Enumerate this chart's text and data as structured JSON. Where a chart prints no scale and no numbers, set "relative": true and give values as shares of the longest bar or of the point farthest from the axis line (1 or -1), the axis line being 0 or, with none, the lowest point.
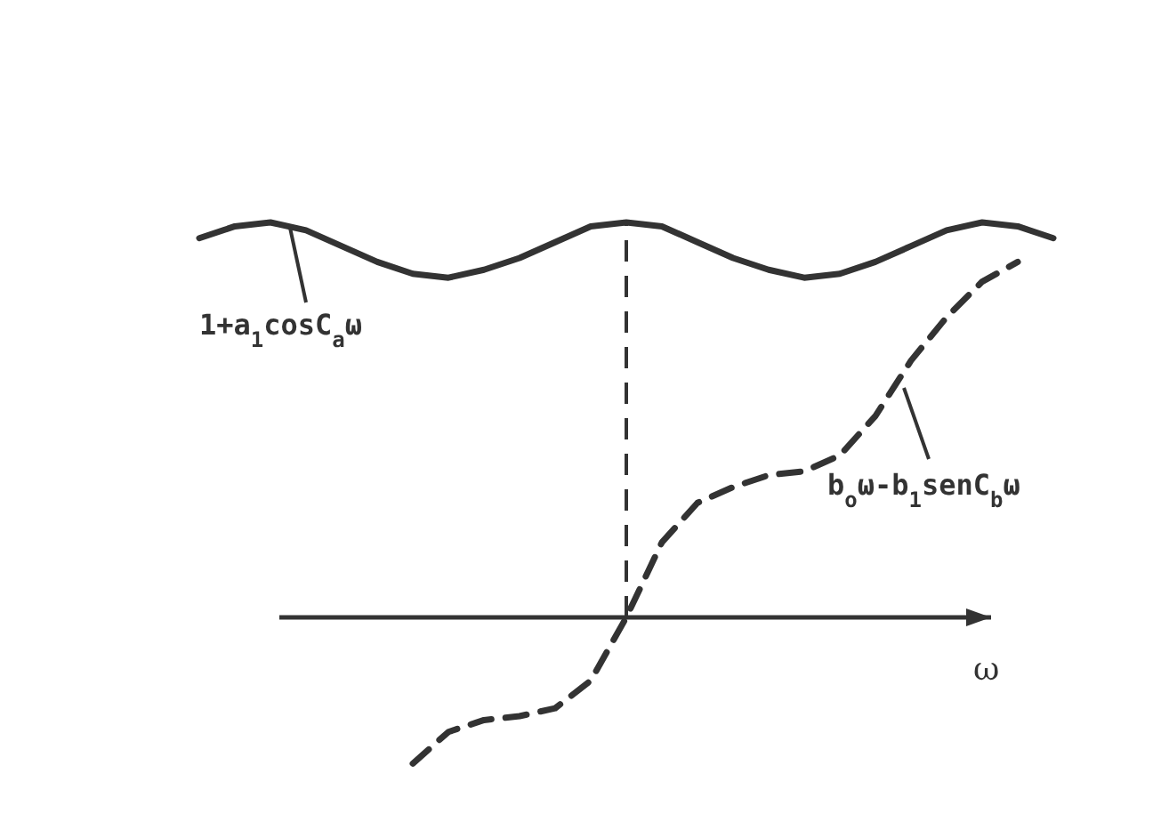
{
  "chart_data": {
    "type": "line",
    "relative": true,
    "xlabel": "ω",
    "categories": [
      null,
      null,
      null,
      null,
      null,
      null,
      null,
      null,
      null,
      null,
      null,
      null,
      null,
      null,
      null,
      null,
      null,
      null,
      null,
      null,
      null,
      null,
      null,
      null,
      null
    ],
    "series": [
      {
        "color": "#333333",
        "line_style": "solid",
        "values": [
          0.96,
          0.99,
          1.0,
          0.98,
          0.94,
          0.9,
          0.87,
          0.86,
          0.88,
          0.91,
          0.95,
          0.99,
          1.0,
          0.99,
          0.95,
          0.91,
          0.88,
          0.86,
          0.87,
          0.9,
          0.94,
          0.98,
          1.0,
          0.99,
          0.96
        ]
      },
      {
        "color": "#333333",
        "line_style": "dashed",
        "values": [
          null,
          null,
          null,
          null,
          null,
          null,
          -0.37,
          -0.29,
          -0.26,
          -0.25,
          -0.23,
          -0.16,
          0,
          0.19,
          0.29,
          0.33,
          0.36,
          0.37,
          0.41,
          0.51,
          0.65,
          0.76,
          0.85,
          0.9,
          null
        ]
      }
    ],
    "annotations": [
      "1+a$_{1}$cosC$_{a}$ω",
      "b$_{o}$ω-b$_{1}$senC$_{b}$ω"
    ]
  }
}
